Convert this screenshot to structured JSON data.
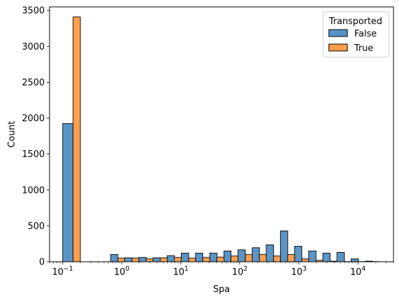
{
  "chart_data": {
    "type": "bar",
    "subtype": "histogram-dodge",
    "xscale": "log",
    "xlabel": "Spa",
    "ylabel": "Count",
    "xlim": [
      0.06,
      40000
    ],
    "ylim": [
      0,
      3550
    ],
    "legend": {
      "title": "Transported",
      "placement": "top-right"
    },
    "xticks": [
      {
        "value": 0.1,
        "base": "10",
        "exp": "−1"
      },
      {
        "value": 1,
        "base": "10",
        "exp": "0"
      },
      {
        "value": 10,
        "base": "10",
        "exp": "1"
      },
      {
        "value": 100,
        "base": "10",
        "exp": "2"
      },
      {
        "value": 1000,
        "base": "10",
        "exp": "3"
      },
      {
        "value": 10000,
        "base": "10",
        "exp": "4"
      }
    ],
    "yticks": [
      0,
      500,
      1000,
      1500,
      2000,
      2500,
      3000,
      3500
    ],
    "series": [
      {
        "name": "False",
        "color": "#5692c4",
        "bins": [
          {
            "x0": 0.1,
            "x1": 0.15,
            "value": 1925
          },
          {
            "x0": 0.65,
            "x1": 0.86,
            "value": 100
          },
          {
            "x0": 1.12,
            "x1": 1.5,
            "value": 55
          },
          {
            "x0": 1.95,
            "x1": 2.6,
            "value": 60
          },
          {
            "x0": 3.4,
            "x1": 4.5,
            "value": 55
          },
          {
            "x0": 5.9,
            "x1": 7.8,
            "value": 85
          },
          {
            "x0": 10.2,
            "x1": 13.6,
            "value": 120
          },
          {
            "x0": 17.8,
            "x1": 23.6,
            "value": 120
          },
          {
            "x0": 31,
            "x1": 41,
            "value": 120
          },
          {
            "x0": 54,
            "x1": 71,
            "value": 150
          },
          {
            "x0": 93,
            "x1": 124,
            "value": 165
          },
          {
            "x0": 162,
            "x1": 215,
            "value": 195
          },
          {
            "x0": 280,
            "x1": 373,
            "value": 235
          },
          {
            "x0": 487,
            "x1": 647,
            "value": 430
          },
          {
            "x0": 845,
            "x1": 1123,
            "value": 215
          },
          {
            "x0": 1466,
            "x1": 1950,
            "value": 150
          },
          {
            "x0": 2545,
            "x1": 3383,
            "value": 120
          },
          {
            "x0": 4417,
            "x1": 5872,
            "value": 130
          },
          {
            "x0": 7667,
            "x1": 10193,
            "value": 40
          },
          {
            "x0": 13307,
            "x1": 17692,
            "value": 8
          }
        ]
      },
      {
        "name": "True",
        "color": "#fc9d4a",
        "bins": [
          {
            "x0": 0.15,
            "x1": 0.2,
            "value": 3410
          },
          {
            "x0": 0.86,
            "x1": 1.12,
            "value": 50
          },
          {
            "x0": 1.5,
            "x1": 1.95,
            "value": 50
          },
          {
            "x0": 2.6,
            "x1": 3.4,
            "value": 40
          },
          {
            "x0": 4.5,
            "x1": 5.9,
            "value": 55
          },
          {
            "x0": 7.8,
            "x1": 10.2,
            "value": 60
          },
          {
            "x0": 13.6,
            "x1": 17.8,
            "value": 50
          },
          {
            "x0": 23.6,
            "x1": 31,
            "value": 60
          },
          {
            "x0": 41,
            "x1": 54,
            "value": 65
          },
          {
            "x0": 71,
            "x1": 93,
            "value": 80
          },
          {
            "x0": 124,
            "x1": 162,
            "value": 100
          },
          {
            "x0": 215,
            "x1": 280,
            "value": 100
          },
          {
            "x0": 373,
            "x1": 487,
            "value": 80
          },
          {
            "x0": 647,
            "x1": 845,
            "value": 100
          },
          {
            "x0": 1123,
            "x1": 1466,
            "value": 40
          },
          {
            "x0": 1950,
            "x1": 2545,
            "value": 20
          },
          {
            "x0": 3383,
            "x1": 4417,
            "value": 8
          },
          {
            "x0": 5872,
            "x1": 7667,
            "value": 3
          },
          {
            "x0": 10193,
            "x1": 13307,
            "value": 2
          },
          {
            "x0": 17692,
            "x1": 23000,
            "value": 2
          }
        ]
      }
    ]
  }
}
